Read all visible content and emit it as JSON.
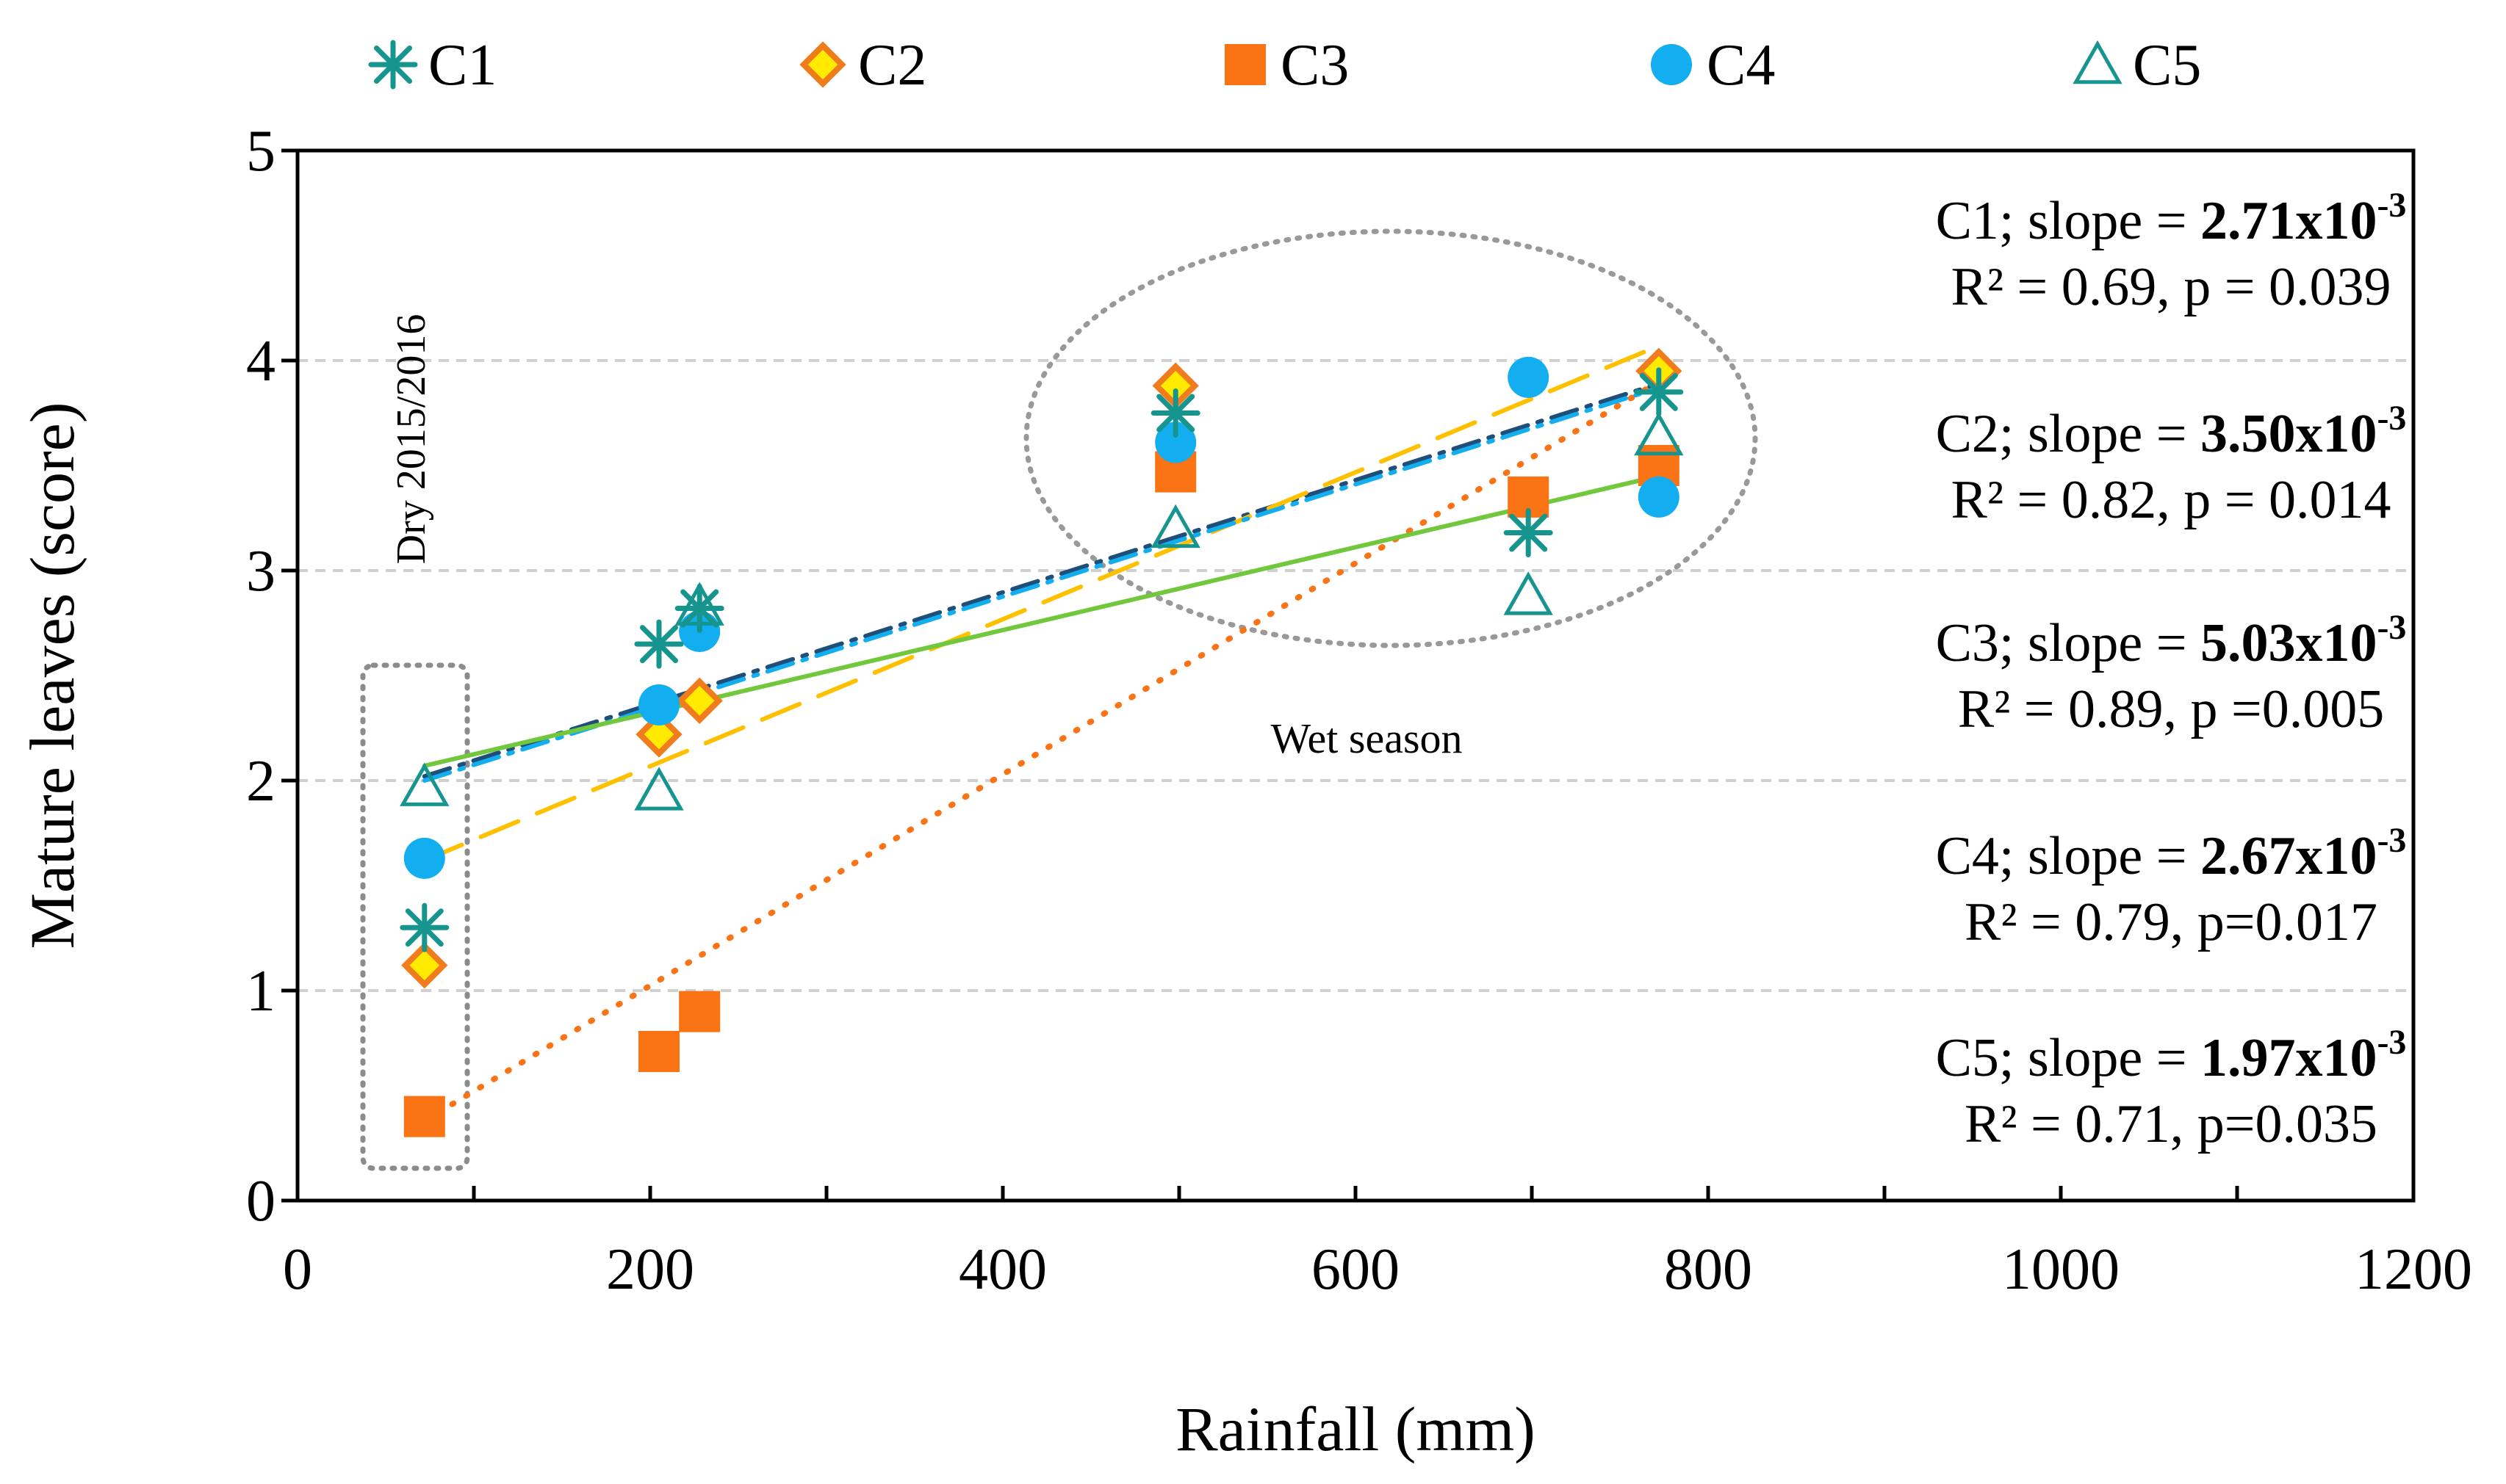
{
  "chart_data": {
    "type": "scatter",
    "xlabel": "Rainfall (mm)",
    "ylabel": "Mature leaves (score)",
    "xlim": [
      0,
      1200
    ],
    "ylim": [
      0,
      5
    ],
    "x_ticks": [
      "0",
      "200",
      "400",
      "600",
      "800",
      "1000",
      "1200"
    ],
    "y_ticks": [
      "0",
      "1",
      "2",
      "3",
      "4",
      "5"
    ],
    "grid": "horizontal dashed",
    "legend_position": "top",
    "series": [
      {
        "name": "C1",
        "marker": "asterisk",
        "color": "#16958f",
        "x": [
          72,
          205,
          228,
          498,
          698,
          772
        ],
        "y": [
          1.3,
          2.65,
          2.82,
          3.75,
          3.18,
          3.85
        ],
        "trend": {
          "x0": 72,
          "y0": 2.02,
          "x1": 772,
          "y1": 3.89,
          "style": "dashdot",
          "color": "#1f4e79"
        },
        "stats": {
          "prefix": "C1; slope = ",
          "slope": "2.71x10",
          "exp": "-3",
          "fit": "R² = 0.69, p = 0.039"
        }
      },
      {
        "name": "C2",
        "marker": "diamond",
        "color": "#ffea00",
        "stroke": "#f07c1e",
        "x": [
          72,
          205,
          228,
          498,
          772
        ],
        "y": [
          1.12,
          2.22,
          2.38,
          3.88,
          3.95
        ],
        "trend": {
          "x0": 72,
          "y0": 1.62,
          "x1": 772,
          "y1": 4.07,
          "style": "dash",
          "color": "#ffc000"
        },
        "stats": {
          "prefix": "C2; slope = ",
          "slope": "3.50x10",
          "exp": "-3",
          "fit": "R² = 0.82, p = 0.014"
        }
      },
      {
        "name": "C3",
        "marker": "square",
        "color": "#fa7314",
        "x": [
          72,
          205,
          228,
          498,
          698,
          772
        ],
        "y": [
          0.4,
          0.71,
          0.9,
          3.47,
          3.35,
          3.5
        ],
        "trend": {
          "x0": 72,
          "y0": 0.38,
          "x1": 772,
          "y1": 3.9,
          "style": "dot",
          "color": "#fa7314"
        },
        "stats": {
          "prefix": "C3; slope = ",
          "slope": "5.03x10",
          "exp": "-3",
          "fit": "R² = 0.89, p =0.005"
        }
      },
      {
        "name": "C4",
        "marker": "circle",
        "color": "#12aeef",
        "x": [
          72,
          205,
          228,
          498,
          698,
          772
        ],
        "y": [
          1.63,
          2.36,
          2.71,
          3.61,
          3.92,
          3.35
        ],
        "trend": {
          "x0": 72,
          "y0": 2.0,
          "x1": 772,
          "y1": 3.87,
          "style": "dashdot",
          "color": "#12aeef"
        },
        "stats": {
          "prefix": "C4; slope = ",
          "slope": "2.67x10",
          "exp": "-3",
          "fit": "R² = 0.79, p=0.017"
        }
      },
      {
        "name": "C5",
        "marker": "triangle",
        "color": "#16958f",
        "x": [
          72,
          205,
          228,
          498,
          698,
          772
        ],
        "y": [
          1.97,
          1.95,
          2.83,
          3.2,
          2.88,
          3.64
        ],
        "trend": {
          "x0": 72,
          "y0": 2.07,
          "x1": 772,
          "y1": 3.45,
          "style": "solid",
          "color": "#72c83d"
        },
        "stats": {
          "prefix": "C5; slope = ",
          "slope": "1.97x10",
          "exp": "-3",
          "fit": "R² = 0.71, p=0.035"
        }
      }
    ],
    "annotations": {
      "dry": "Dry 2015/2016",
      "wet": "Wet season"
    }
  }
}
